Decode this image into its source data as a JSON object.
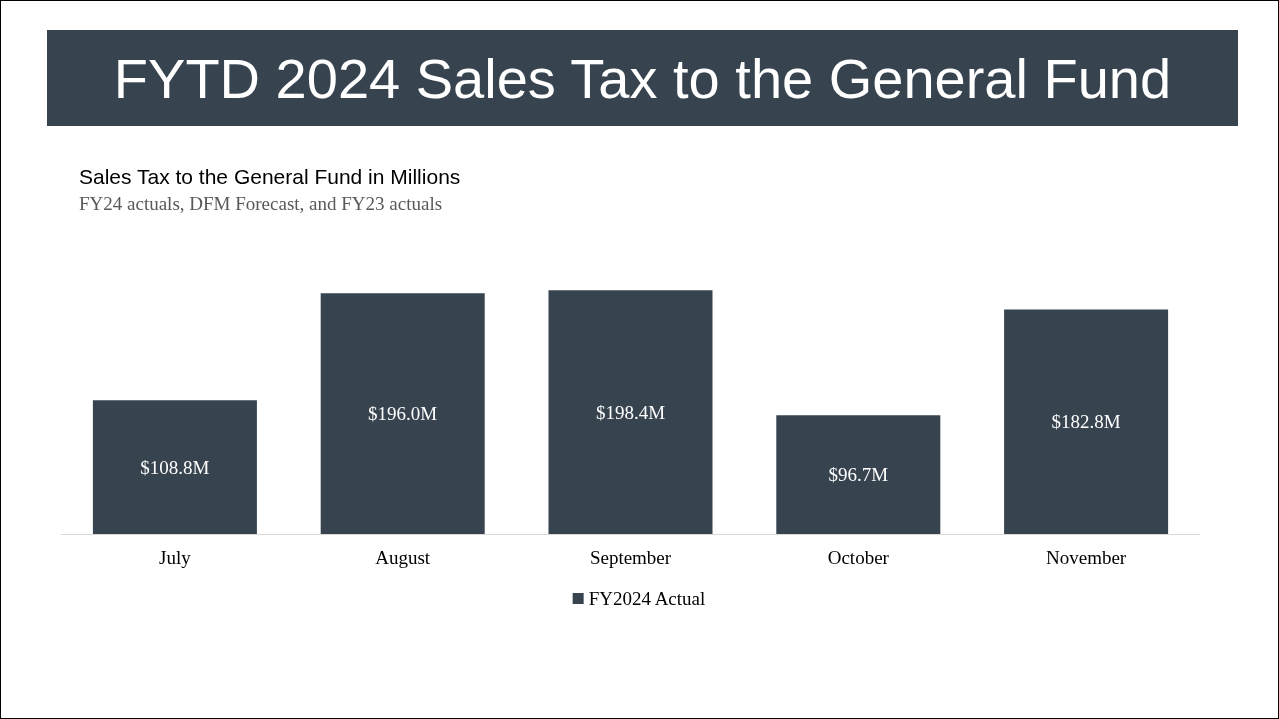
{
  "chart_data": {
    "type": "bar",
    "title": "FYTD 2024 Sales Tax to the General Fund",
    "subtitle": "Sales Tax to the General Fund in Millions",
    "annotations": [
      "FY24 actuals, DFM Forecast, and FY23 actuals"
    ],
    "categories": [
      "July",
      "August",
      "September",
      "October",
      "November"
    ],
    "series": [
      {
        "name": "FY2024 Actual",
        "color": "#37444f",
        "values": [
          108.8,
          196.0,
          198.4,
          96.7,
          182.8
        ],
        "value_labels": [
          "$108.8M",
          "$196.0M",
          "$198.4M",
          "$96.7M",
          "$182.8M"
        ]
      }
    ],
    "legend": "bottom",
    "grid": false
  }
}
